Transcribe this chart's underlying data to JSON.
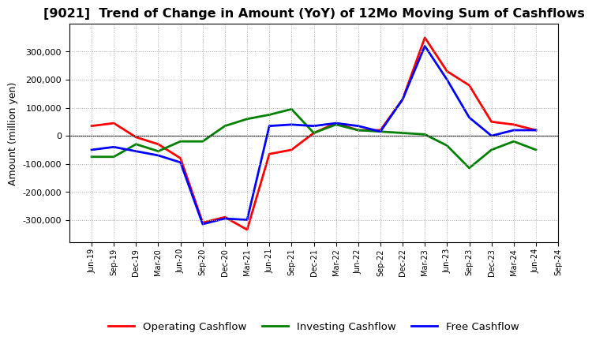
{
  "title": "[9021]  Trend of Change in Amount (YoY) of 12Mo Moving Sum of Cashflows",
  "ylabel": "Amount (million yen)",
  "x_labels": [
    "Jun-19",
    "Sep-19",
    "Dec-19",
    "Mar-20",
    "Jun-20",
    "Sep-20",
    "Dec-20",
    "Mar-21",
    "Jun-21",
    "Sep-21",
    "Dec-21",
    "Mar-22",
    "Jun-22",
    "Sep-22",
    "Dec-22",
    "Mar-23",
    "Jun-23",
    "Sep-23",
    "Dec-23",
    "Mar-24",
    "Jun-24",
    "Sep-24"
  ],
  "operating": [
    35000,
    45000,
    -5000,
    -30000,
    -80000,
    -310000,
    -290000,
    -335000,
    -65000,
    -50000,
    10000,
    45000,
    20000,
    20000,
    130000,
    350000,
    230000,
    180000,
    50000,
    40000,
    20000,
    null
  ],
  "investing": [
    -75000,
    -75000,
    -30000,
    -55000,
    -20000,
    -20000,
    35000,
    60000,
    75000,
    95000,
    10000,
    40000,
    20000,
    15000,
    10000,
    5000,
    -35000,
    -115000,
    -50000,
    -20000,
    -50000,
    null
  ],
  "free": [
    -50000,
    -40000,
    -55000,
    -70000,
    -95000,
    -315000,
    -295000,
    -300000,
    35000,
    40000,
    35000,
    45000,
    35000,
    15000,
    130000,
    320000,
    200000,
    65000,
    0,
    20000,
    20000,
    null
  ],
  "ylim": [
    -380000,
    400000
  ],
  "yticks": [
    -300000,
    -200000,
    -100000,
    0,
    100000,
    200000,
    300000
  ],
  "operating_color": "#ff0000",
  "investing_color": "#008000",
  "free_color": "#0000ff",
  "background_color": "#ffffff",
  "plot_bg_color": "#ffffff",
  "grid_color": "#aaaaaa",
  "title_fontsize": 11.5,
  "axis_fontsize": 9,
  "legend_fontsize": 9.5,
  "linewidth": 2.0
}
